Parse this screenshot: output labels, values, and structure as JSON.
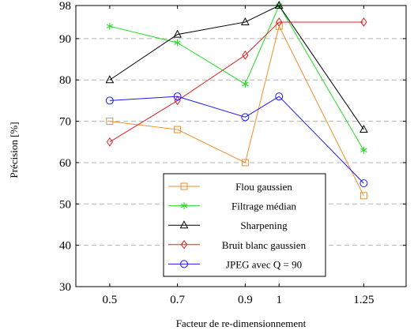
{
  "chart_data": {
    "type": "line",
    "xlabel": "Facteur de re-dimensionnement",
    "ylabel": "Précision [%]",
    "x": [
      0.5,
      0.7,
      0.9,
      1.0,
      1.25
    ],
    "x_tick_labels": [
      "0.5",
      "0.7",
      "0.9",
      "1",
      "1.25"
    ],
    "y_ticks": [
      30,
      40,
      50,
      60,
      70,
      80,
      90,
      98
    ],
    "ylim": [
      30,
      98
    ],
    "grid": "horizontal dashed",
    "legend_position": "lower-center",
    "series": [
      {
        "name": "Flou gaussien",
        "color": "#f28c28",
        "marker": "square",
        "values": [
          70,
          68,
          60,
          93,
          52
        ]
      },
      {
        "name": "Filtrage médian",
        "color": "#22dd22",
        "marker": "star",
        "values": [
          93,
          89,
          79,
          98,
          63
        ]
      },
      {
        "name": "Sharpening",
        "color": "#000000",
        "marker": "triangle",
        "values": [
          80,
          91,
          94,
          98,
          68
        ]
      },
      {
        "name": "Bruit blanc gaussien",
        "color": "#e02020",
        "marker": "diamond",
        "values": [
          65,
          75,
          86,
          94,
          94
        ]
      },
      {
        "name": "JPEG avec Q = 90",
        "color": "#1a1aee",
        "marker": "circle",
        "values": [
          75,
          76,
          71,
          76,
          55
        ]
      }
    ]
  }
}
